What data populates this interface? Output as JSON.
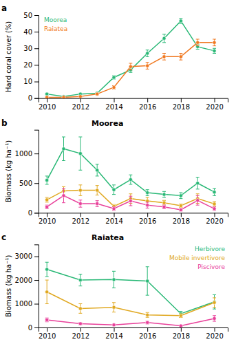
{
  "chart_data": [
    {
      "type": "line",
      "annotations": [
        "a"
      ],
      "ylabel": "Hard coral cover (%)",
      "x": [
        2010,
        2011,
        2012,
        2013,
        2014,
        2015,
        2016,
        2017,
        2018,
        2019,
        2020
      ],
      "xlim": [
        2009.5,
        2020.8
      ],
      "xticks": [
        2010,
        2012,
        2014,
        2016,
        2018,
        2020
      ],
      "ylim": [
        0,
        50
      ],
      "yticks": [
        0,
        10,
        20,
        30,
        40,
        50
      ],
      "marker": "circle",
      "legend": "upper left",
      "series": [
        {
          "name": "Moorea",
          "color": "#29b876",
          "values": [
            2.5,
            1.0,
            2.5,
            3.0,
            12.5,
            17.0,
            27.0,
            36.0,
            46.5,
            31.0,
            28.5
          ],
          "errors": [
            0.5,
            0.3,
            0.5,
            0.5,
            1.0,
            1.5,
            2.0,
            2.5,
            1.5,
            1.5,
            1.5
          ]
        },
        {
          "name": "Raiatea",
          "color": "#f07820",
          "values": [
            0.5,
            0.5,
            1.0,
            2.5,
            6.5,
            19.0,
            19.5,
            25.0,
            25.0,
            33.5,
            33.5
          ],
          "errors": [
            0.2,
            0.2,
            0.3,
            0.5,
            1.0,
            2.0,
            2.0,
            2.0,
            2.0,
            2.0,
            2.0
          ]
        }
      ]
    },
    {
      "type": "line",
      "title": "Moorea",
      "annotations": [
        "b"
      ],
      "ylabel": "Biomass (kg ha⁻¹)",
      "x": [
        2010,
        2011,
        2012,
        2013,
        2014,
        2015,
        2016,
        2017,
        2018,
        2019,
        2020
      ],
      "xlim": [
        2009.5,
        2020.8
      ],
      "xticks": [
        2010,
        2012,
        2014,
        2016,
        2018,
        2020
      ],
      "ylim": [
        0,
        1400
      ],
      "yticks": [
        0,
        500,
        1000
      ],
      "marker": "circle",
      "series": [
        {
          "color": "#29b876",
          "values": [
            550,
            1080,
            1000,
            720,
            390,
            560,
            340,
            310,
            290,
            500,
            350
          ],
          "errors": [
            70,
            200,
            280,
            100,
            80,
            80,
            50,
            50,
            50,
            100,
            60
          ]
        },
        {
          "color": "#e0a820",
          "values": [
            220,
            370,
            380,
            380,
            110,
            240,
            200,
            170,
            120,
            240,
            150
          ],
          "errors": [
            40,
            70,
            90,
            80,
            30,
            80,
            60,
            40,
            30,
            80,
            40
          ]
        },
        {
          "color": "#e8409a",
          "values": [
            100,
            290,
            155,
            155,
            70,
            200,
            130,
            100,
            50,
            210,
            70
          ],
          "errors": [
            30,
            120,
            60,
            50,
            30,
            80,
            50,
            30,
            20,
            80,
            30
          ]
        }
      ]
    },
    {
      "type": "line",
      "title": "Raiatea",
      "annotations": [
        "c"
      ],
      "ylabel": "Biomass (kg ha⁻¹)",
      "x": [
        2010,
        2012,
        2014,
        2016,
        2018,
        2020
      ],
      "xlim": [
        2009.5,
        2020.8
      ],
      "xticks": [
        2010,
        2012,
        2014,
        2016,
        2018,
        2020
      ],
      "ylim": [
        0,
        3500
      ],
      "yticks": [
        0,
        1000,
        2000,
        3000
      ],
      "marker": "circle",
      "legend": "upper right",
      "series": [
        {
          "name": "Herbivore",
          "color": "#29b876",
          "values": [
            2450,
            2000,
            2020,
            1960,
            580,
            1080
          ],
          "errors": [
            300,
            250,
            350,
            600,
            100,
            300
          ]
        },
        {
          "name": "Mobile invertivore",
          "color": "#e0a820",
          "values": [
            1500,
            800,
            850,
            530,
            500,
            1050
          ],
          "errors": [
            500,
            200,
            200,
            100,
            80,
            200
          ]
        },
        {
          "name": "Piscivore",
          "color": "#e8409a",
          "values": [
            320,
            160,
            110,
            210,
            70,
            380
          ],
          "errors": [
            80,
            50,
            30,
            60,
            30,
            120
          ]
        }
      ]
    }
  ]
}
